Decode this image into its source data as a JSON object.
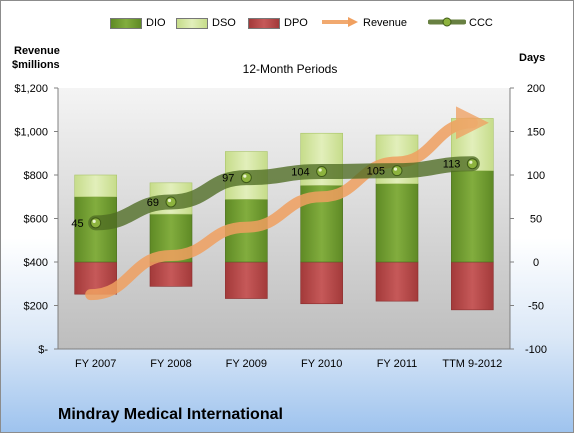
{
  "company": "Mindray Medical International",
  "chart_data": {
    "type": "bar",
    "subtitle": "12-Month Periods",
    "left_axis_label": [
      "Revenue",
      "$millions"
    ],
    "right_axis_label": "Days",
    "categories": [
      "FY 2007",
      "FY 2008",
      "FY 2009",
      "FY 2010",
      "FY 2011",
      "TTM 9-2012"
    ],
    "left_ticks": [
      "$-",
      "$200",
      "$400",
      "$600",
      "$800",
      "$1,000",
      "$1,200"
    ],
    "right_ticks": [
      "-100",
      "-50",
      "0",
      "50",
      "100",
      "150",
      "200"
    ],
    "ylim_left": [
      0,
      1200
    ],
    "ylim_right": [
      -100,
      200
    ],
    "stacked": true,
    "series": [
      {
        "name": "DIO",
        "values": [
          75,
          55,
          72,
          88,
          90,
          105
        ],
        "color": "#6f9a2e"
      },
      {
        "name": "DSO",
        "values": [
          25,
          36,
          55,
          60,
          56,
          60
        ],
        "color": "#d4e6a0"
      },
      {
        "name": "DPO",
        "values": [
          -37,
          -28,
          -42,
          -48,
          -45,
          -55
        ],
        "color": "#b84848"
      },
      {
        "name": "Revenue",
        "values": [
          250,
          430,
          560,
          700,
          860,
          1040
        ],
        "color": "#f0a060",
        "axis": "left"
      },
      {
        "name": "CCC",
        "values": [
          45,
          69,
          97,
          104,
          105,
          113
        ],
        "color": "#5a7a28",
        "axis": "right"
      }
    ],
    "data_labels": [
      "45",
      "69",
      "97",
      "104",
      "105",
      "113"
    ],
    "legend_placement": "top",
    "grid": false
  }
}
